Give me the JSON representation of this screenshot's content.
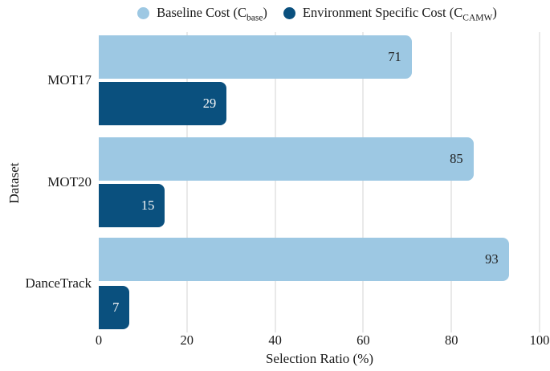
{
  "figure": {
    "background": "#ffffff",
    "text_color": "#1a1a1a",
    "grid_color": "#e9e9e9"
  },
  "legend": {
    "items": [
      {
        "name": "baseline-cost",
        "color": "#9dc8e3",
        "text_before": "Baseline Cost (C",
        "subscript": "base",
        "text_after": ")"
      },
      {
        "name": "environment-specific-cost",
        "color": "#0a507e",
        "text_before": "Environment Specific Cost (C",
        "subscript": "CAMW",
        "text_after": ")"
      }
    ]
  },
  "chart_data": {
    "type": "bar",
    "orientation": "horizontal",
    "title": "",
    "xlabel": "Selection Ratio (%)",
    "ylabel": "Dataset",
    "categories": [
      "MOT17",
      "MOT20",
      "DanceTrack"
    ],
    "series": [
      {
        "name": "Baseline Cost (C_base)",
        "color": "#9dc8e3",
        "values": [
          71,
          85,
          93
        ],
        "value_label_color": "#1f1f1f"
      },
      {
        "name": "Environment Specific Cost (C_CAMW)",
        "color": "#0a507e",
        "values": [
          29,
          15,
          7
        ],
        "value_label_color": "#f7f7f7"
      }
    ],
    "xlim": [
      0,
      100
    ],
    "xticks": [
      0,
      20,
      40,
      60,
      80,
      100
    ],
    "grid": "vertical",
    "legend_position": "top",
    "value_labels": "inside-end"
  }
}
